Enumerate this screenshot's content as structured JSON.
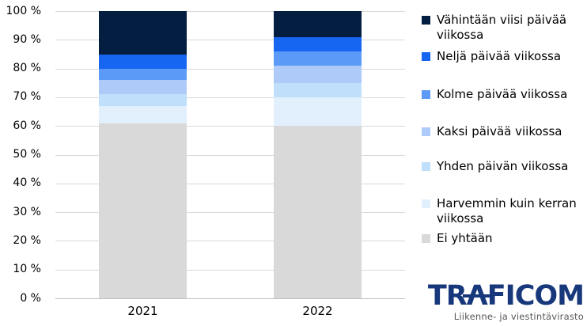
{
  "chart_data": {
    "type": "bar",
    "stacked": true,
    "percent_axis": true,
    "categories": [
      "2021",
      "2022"
    ],
    "series": [
      {
        "key": "ei-yhtaan",
        "name": "Ei yhtään",
        "color": "#D9D9D9",
        "values": [
          61,
          60
        ]
      },
      {
        "key": "harvemmin-kuin-kerran-viikossa",
        "name": "Harvemmin kuin kerran viikossa",
        "color": "#E2EFFC",
        "values": [
          6,
          10
        ]
      },
      {
        "key": "yhden-paivan-viikossa",
        "name": "Yhden päivän viikossa",
        "color": "#BFDFFB",
        "values": [
          4,
          5
        ]
      },
      {
        "key": "kaksi-paivaa-viikossa",
        "name": "Kaksi päivää viikossa",
        "color": "#AECAF8",
        "values": [
          5,
          6
        ]
      },
      {
        "key": "kolme-paivaa-viikossa",
        "name": "Kolme päivää viikossa",
        "color": "#5B9BF7",
        "values": [
          4,
          5
        ]
      },
      {
        "key": "nelja-paivaa-viikossa",
        "name": "Neljä päivää viikossa",
        "color": "#1666F1",
        "values": [
          5,
          5
        ]
      },
      {
        "key": "vahintaan-viisi-paivaa-viikossa",
        "name": "Vähintään viisi päivää viikossa",
        "color": "#041E42",
        "values": [
          15,
          9
        ]
      }
    ],
    "stack_order": "bottom-to-top",
    "legend_order": "reverse-of-stack (top item = top segment)",
    "legend_position": "right",
    "y_tick_labels": [
      "100 %",
      "90 %",
      "80 %",
      "70 %",
      "60 %",
      "50 %",
      "40 %",
      "30 %",
      "20 %",
      "10 %",
      "0 %"
    ],
    "ylim": [
      0,
      100
    ],
    "grid": true
  },
  "logo": {
    "wordmark": "TRAFICOM",
    "tagline": "Liikenne- ja viestintävirasto"
  },
  "colors": {
    "gridline": "#D9D9D9",
    "axis_line": "#BFBFBF",
    "text": "#000000",
    "logo_blue": "#17397C",
    "tagline_gray": "#575756"
  }
}
